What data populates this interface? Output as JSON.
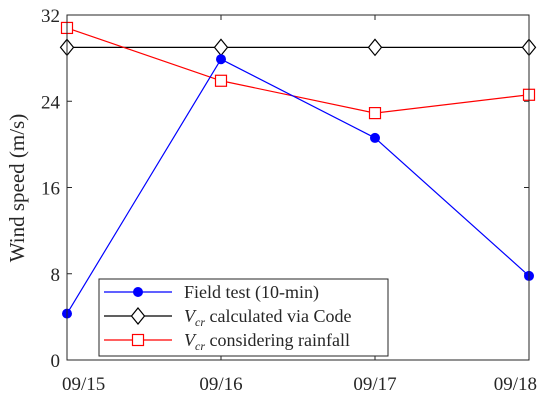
{
  "chart_data": {
    "type": "line",
    "x": [
      "09/15",
      "09/16",
      "09/17",
      "09/18"
    ],
    "ylabel": "Wind speed (m/s)",
    "ylim": [
      0,
      32
    ],
    "yticks": [
      0,
      8,
      16,
      24,
      32
    ],
    "grid": false,
    "legend_position": "bottom-left",
    "series": [
      {
        "id": "field",
        "name": "Field test (10-min)",
        "values": [
          4.3,
          27.9,
          20.6,
          7.8
        ],
        "color": "#0000ff",
        "marker": "filled-circle"
      },
      {
        "id": "code",
        "name_var": "V",
        "name_sub": "cr",
        "name_rest": " calculated via Code",
        "values": [
          29.0,
          29.0,
          29.0,
          29.0
        ],
        "color": "#000000",
        "marker": "open-diamond"
      },
      {
        "id": "rain",
        "name_var": "V",
        "name_sub": "cr",
        "name_rest": " considering rainfall",
        "values": [
          30.8,
          25.9,
          22.9,
          24.6
        ],
        "color": "#ff0000",
        "marker": "open-square"
      }
    ]
  }
}
